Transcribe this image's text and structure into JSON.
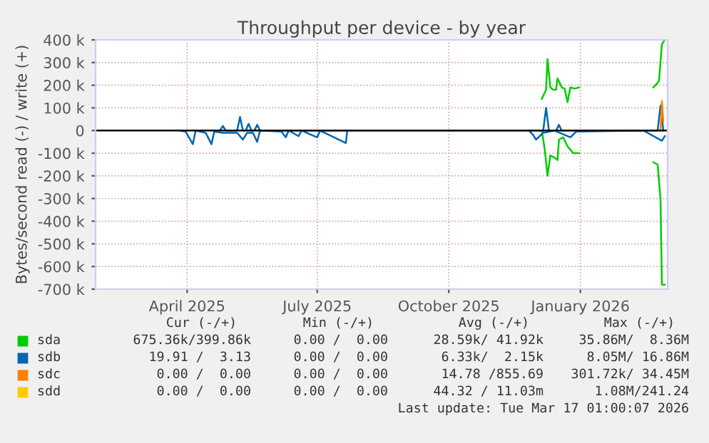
{
  "chart_data": {
    "type": "line",
    "title": "Throughput per device - by year",
    "ylabel": "Bytes/second read (-) / write (+)",
    "xlim": [
      "2025-02-10",
      "2026-03-17"
    ],
    "xticks": [
      {
        "value": "2025-04-15",
        "label": "April 2025"
      },
      {
        "value": "2025-07-15",
        "label": "July 2025"
      },
      {
        "value": "2025-10-15",
        "label": "October 2025"
      },
      {
        "value": "2026-01-15",
        "label": "January 2026"
      }
    ],
    "ylim": [
      -700000,
      400000
    ],
    "yticks": [
      {
        "value": -700000,
        "label": "-700 k"
      },
      {
        "value": -600000,
        "label": "-600 k"
      },
      {
        "value": -500000,
        "label": "-500 k"
      },
      {
        "value": -400000,
        "label": "-400 k"
      },
      {
        "value": -300000,
        "label": "-300 k"
      },
      {
        "value": -200000,
        "label": "-200 k"
      },
      {
        "value": -100000,
        "label": "-100 k"
      },
      0,
      {
        "value": 100000,
        "label": "100 k"
      },
      {
        "value": 200000,
        "label": "200 k"
      },
      {
        "value": 300000,
        "label": "300 k"
      },
      {
        "value": 400000,
        "label": "400 k"
      }
    ],
    "grid": true,
    "legend": "bottom",
    "marker": "none",
    "line_style": "solid",
    "ref_lines": [
      {
        "axis": "y",
        "value": 0,
        "color": "#000000"
      }
    ],
    "series": [
      {
        "name": "sda",
        "color": "#00cc00",
        "x": [
          "2025-12-19",
          "2025-12-22",
          "2025-12-23",
          "2025-12-25",
          "2025-12-27",
          "2025-12-29",
          "2025-12-30",
          "2026-01-02",
          "2026-01-04",
          "2026-01-06",
          "2026-01-08",
          "2026-01-11",
          "2026-01-14",
          "2026-02-10",
          "2026-03-07",
          "2026-03-10",
          "2026-03-11",
          "2026-03-13",
          "2026-03-15"
        ],
        "values": [
          140000,
          180000,
          315000,
          190000,
          180000,
          180000,
          230000,
          190000,
          185000,
          125000,
          190000,
          185000,
          190000,
          null,
          190000,
          210000,
          220000,
          380000,
          400000
        ]
      },
      {
        "color": "#00cc00",
        "x": [
          "2025-12-19",
          "2025-12-21",
          "2025-12-23",
          "2025-12-25",
          "2025-12-28",
          "2025-12-30",
          "2025-12-31",
          "2026-01-03",
          "2026-01-06",
          "2026-01-10",
          "2026-01-14",
          "2026-02-10",
          "2026-03-07",
          "2026-03-10",
          "2026-03-12",
          "2026-03-13",
          "2026-03-15"
        ],
        "values": [
          0,
          -80000,
          -200000,
          -110000,
          -120000,
          -130000,
          -40000,
          -30000,
          -70000,
          -100000,
          -100000,
          null,
          -140000,
          -150000,
          -300000,
          -680000,
          -680000
        ]
      },
      {
        "name": "sdb",
        "color": "#0066b3",
        "x": [
          "2025-05-08",
          "2025-05-10",
          "2025-05-12",
          "2025-05-20",
          "2025-05-22",
          "2025-05-24",
          "2025-05-26",
          "2025-05-28",
          "2025-05-30",
          "2025-06-01",
          "2025-06-03",
          "2025-06-05",
          "2025-12-20",
          "2025-12-22",
          "2025-12-24",
          "2025-12-29",
          "2025-12-31",
          "2026-01-02",
          "2026-03-10",
          "2026-03-12",
          "2026-03-14"
        ],
        "values": [
          0,
          20000,
          0,
          0,
          60000,
          0,
          0,
          30000,
          0,
          0,
          25000,
          0,
          0,
          100000,
          0,
          0,
          25000,
          0,
          0,
          110000,
          0
        ]
      },
      {
        "color": "#0066b3",
        "x": [
          "2025-04-10",
          "2025-04-14",
          "2025-04-19",
          "2025-04-21",
          "2025-04-28",
          "2025-05-02",
          "2025-05-04",
          "2025-05-10",
          "2025-05-20",
          "2025-05-24",
          "2025-05-27",
          "2025-05-31",
          "2025-06-03",
          "2025-06-05",
          "2025-06-20",
          "2025-06-23",
          "2025-06-25",
          "2025-07-02",
          "2025-07-04",
          "2025-07-15",
          "2025-07-17",
          "2025-08-04",
          "2025-08-05",
          "2025-09-15",
          "2025-12-10",
          "2025-12-13",
          "2025-12-15",
          "2025-12-20",
          "2025-12-28",
          "2026-01-08",
          "2026-01-12",
          "2026-02-28",
          "2026-03-13",
          "2026-03-15"
        ],
        "values": [
          0,
          -5000,
          -60000,
          0,
          -10000,
          -60000,
          -5000,
          -10000,
          -10000,
          -40000,
          -10000,
          -10000,
          -50000,
          0,
          -5000,
          -30000,
          0,
          -25000,
          0,
          -30000,
          0,
          -55000,
          0,
          null,
          0,
          -20000,
          -40000,
          -10000,
          0,
          -30000,
          -5000,
          0,
          -45000,
          -25000
        ]
      },
      {
        "name": "sdc",
        "color": "#ff8000",
        "x": [
          "2026-03-12",
          "2026-03-13",
          "2026-03-14"
        ],
        "values": [
          0,
          130000,
          40000
        ]
      },
      {
        "name": "sdd",
        "color": "#ffcc00"
      }
    ],
    "annotations": [
      "Cur (-/+)",
      "Min (-/+)",
      "Avg (-/+)",
      "Max (-/+)",
      "675.36k/399.86k",
      "0.00 /  0.00",
      "28.59k/ 41.92k",
      "35.86M/  8.36M",
      "19.91 /  3.13",
      "0.00 /  0.00",
      "6.33k/  2.15k",
      "8.05M/ 16.86M",
      "0.00 /  0.00",
      "0.00 /  0.00",
      "14.78 /855.69",
      "301.72k/ 34.45M",
      "0.00 /  0.00",
      "0.00 /  0.00",
      "44.32 / 11.03m",
      "1.08M/241.24",
      "Last update: Tue Mar 17 01:00:07 2026"
    ]
  }
}
